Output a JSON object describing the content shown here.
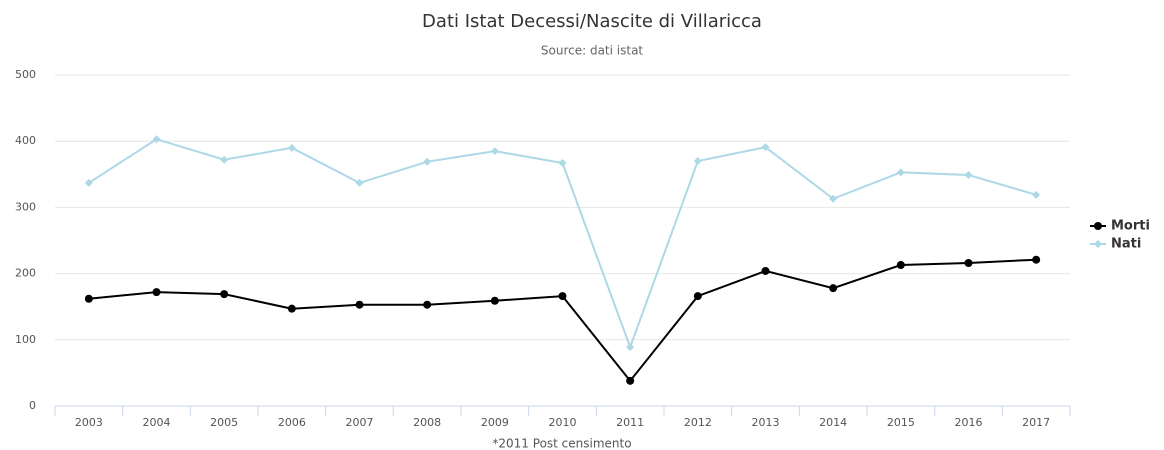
{
  "chart_data": {
    "type": "line",
    "title": "Dati Istat Decessi/Nascite di Villaricca",
    "subtitle": "Source: dati istat",
    "x_label": "*2011 Post censimento",
    "categories": [
      "2003",
      "2004",
      "2005",
      "2006",
      "2007",
      "2008",
      "2009",
      "2010",
      "2011",
      "2012",
      "2013",
      "2014",
      "2015",
      "2016",
      "2017"
    ],
    "series": [
      {
        "name": "Morti",
        "color": "#000000",
        "values": [
          162,
          172,
          169,
          147,
          153,
          153,
          159,
          166,
          38,
          166,
          204,
          178,
          213,
          216,
          221
        ]
      },
      {
        "name": "Nati",
        "color": "#add8e6",
        "values": [
          337,
          403,
          372,
          390,
          337,
          369,
          385,
          367,
          89,
          370,
          391,
          313,
          353,
          349,
          319
        ]
      }
    ],
    "ylim": [
      0,
      500
    ],
    "yticks": [
      0,
      100,
      200,
      300,
      400,
      500
    ],
    "grid": true,
    "legend": "right"
  }
}
